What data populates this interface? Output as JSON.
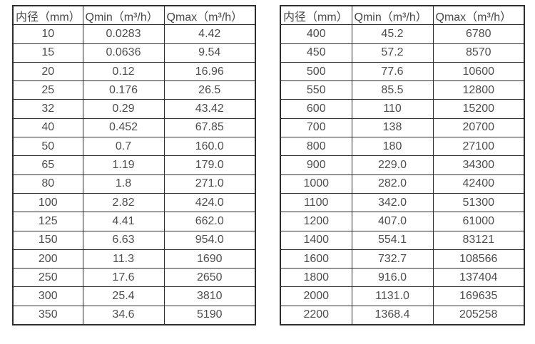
{
  "colors": {
    "border": "#2e2e2e",
    "text": "#4d4d4d",
    "background": "#ffffff"
  },
  "table_left": {
    "headers": [
      "内径（mm）",
      "Qmin（m³/h）",
      "Qmax（m³/h）"
    ],
    "rows": [
      [
        "10",
        "0.0283",
        "4.42"
      ],
      [
        "15",
        "0.0636",
        "9.54"
      ],
      [
        "20",
        "0.12",
        "16.96"
      ],
      [
        "25",
        "0.176",
        "26.5"
      ],
      [
        "32",
        "0.29",
        "43.42"
      ],
      [
        "40",
        "0.452",
        "67.85"
      ],
      [
        "50",
        "0.7",
        "160.0"
      ],
      [
        "65",
        "1.19",
        "179.0"
      ],
      [
        "80",
        "1.8",
        "271.0"
      ],
      [
        "100",
        "2.82",
        "424.0"
      ],
      [
        "125",
        "4.41",
        "662.0"
      ],
      [
        "150",
        "6.63",
        "954.0"
      ],
      [
        "200",
        "11.3",
        "1690"
      ],
      [
        "250",
        "17.6",
        "2650"
      ],
      [
        "300",
        "25.4",
        "3810"
      ],
      [
        "350",
        "34.6",
        "5190"
      ]
    ]
  },
  "table_right": {
    "headers": [
      "内径（mm）",
      "Qmin（m³/h）",
      "Qmax（m³/h）"
    ],
    "rows": [
      [
        "400",
        "45.2",
        "6780"
      ],
      [
        "450",
        "57.2",
        "8570"
      ],
      [
        "500",
        "77.6",
        "10600"
      ],
      [
        "550",
        "85.5",
        "12800"
      ],
      [
        "600",
        "110",
        "15200"
      ],
      [
        "700",
        "138",
        "20700"
      ],
      [
        "800",
        "180",
        "27100"
      ],
      [
        "900",
        "229.0",
        "34300"
      ],
      [
        "1000",
        "282.0",
        "42400"
      ],
      [
        "1100",
        "342.0",
        "51300"
      ],
      [
        "1200",
        "407.0",
        "61000"
      ],
      [
        "1400",
        "554.1",
        "83121"
      ],
      [
        "1600",
        "732.7",
        "108566"
      ],
      [
        "1800",
        "916.0",
        "137404"
      ],
      [
        "2000",
        "1131.0",
        "169635"
      ],
      [
        "2200",
        "1368.4",
        "205258"
      ]
    ]
  }
}
